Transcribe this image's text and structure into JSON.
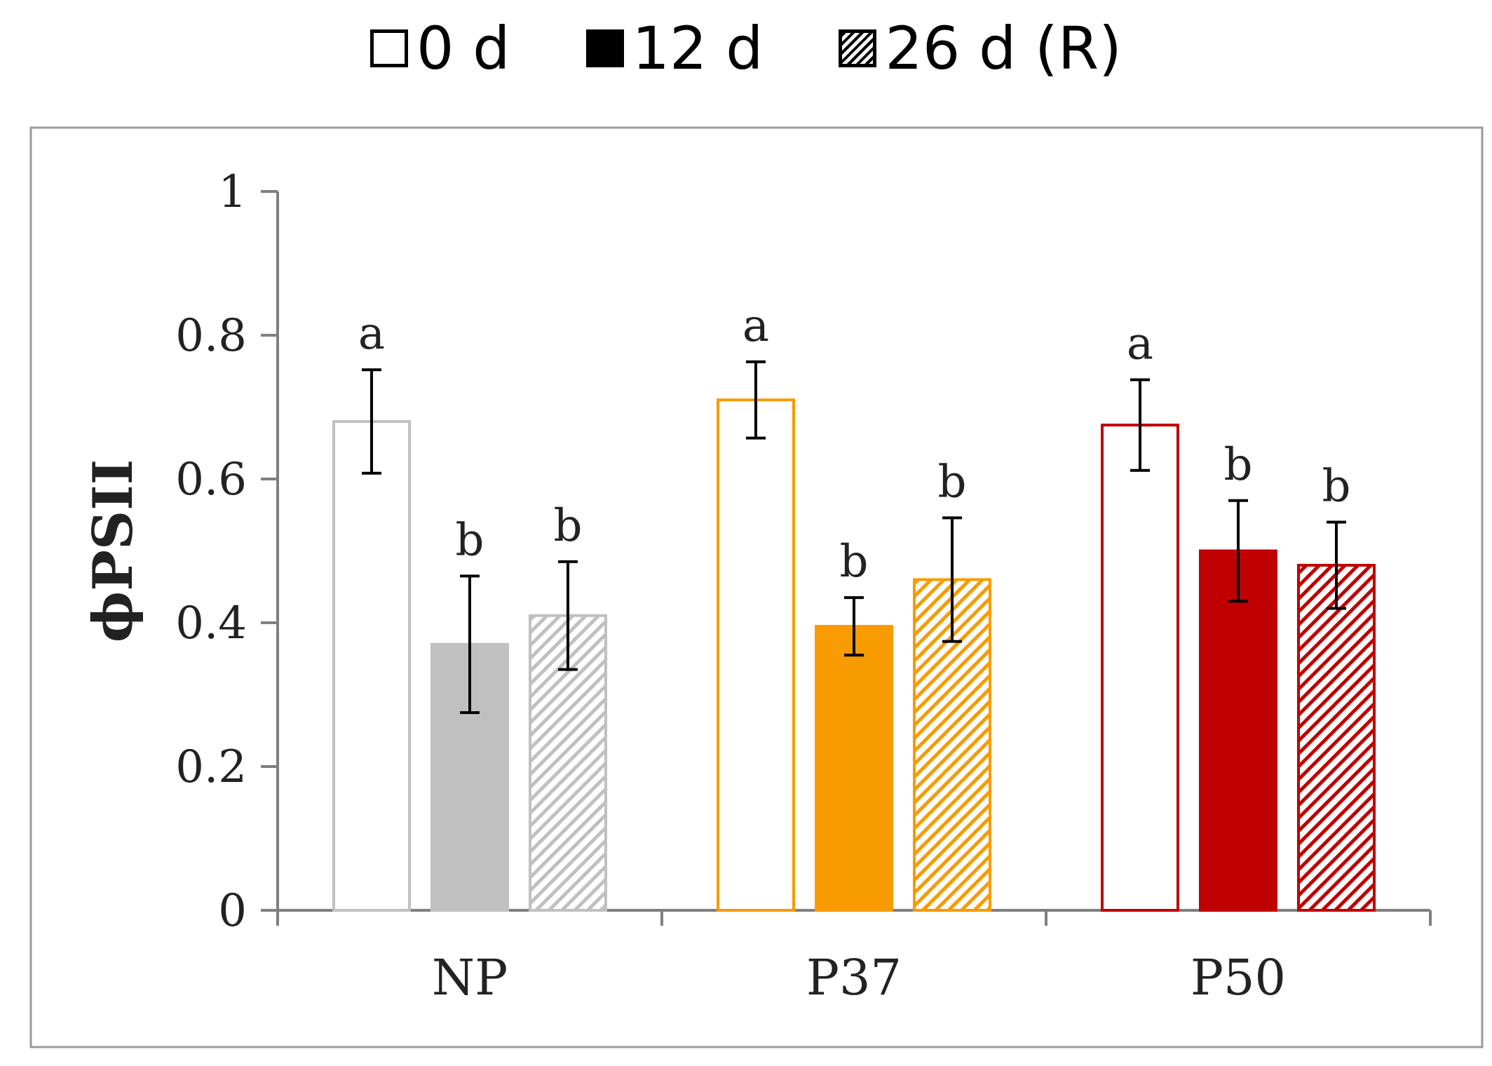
{
  "chart_data": {
    "type": "bar",
    "title": "",
    "xlabel": "",
    "ylabel": "ϕPSII",
    "ylim": [
      0,
      1
    ],
    "yticks": [
      "0",
      "0.2",
      "0.4",
      "0.6",
      "0.8",
      "1"
    ],
    "ytick_values": [
      0,
      0.2,
      0.4,
      0.6,
      0.8,
      1
    ],
    "grid": false,
    "legend_position": "top-center",
    "categories": [
      "NP",
      "P37",
      "P50"
    ],
    "category_colors": [
      "#c0c0c0",
      "#f79b00",
      "#c00000"
    ],
    "series": [
      {
        "name": "0 d",
        "style": "open",
        "values": [
          0.68,
          0.71,
          0.675
        ],
        "errors": [
          0.072,
          0.053,
          0.063
        ],
        "letters": [
          "a",
          "a",
          "a"
        ]
      },
      {
        "name": "12 d",
        "style": "solid",
        "values": [
          0.37,
          0.395,
          0.5
        ],
        "errors": [
          0.095,
          0.04,
          0.07
        ],
        "letters": [
          "b",
          "b",
          "b"
        ]
      },
      {
        "name": "26 d (R)",
        "style": "hatched",
        "values": [
          0.41,
          0.46,
          0.48
        ],
        "errors": [
          0.075,
          0.086,
          0.06
        ],
        "letters": [
          "b",
          "b",
          "b"
        ]
      }
    ]
  }
}
